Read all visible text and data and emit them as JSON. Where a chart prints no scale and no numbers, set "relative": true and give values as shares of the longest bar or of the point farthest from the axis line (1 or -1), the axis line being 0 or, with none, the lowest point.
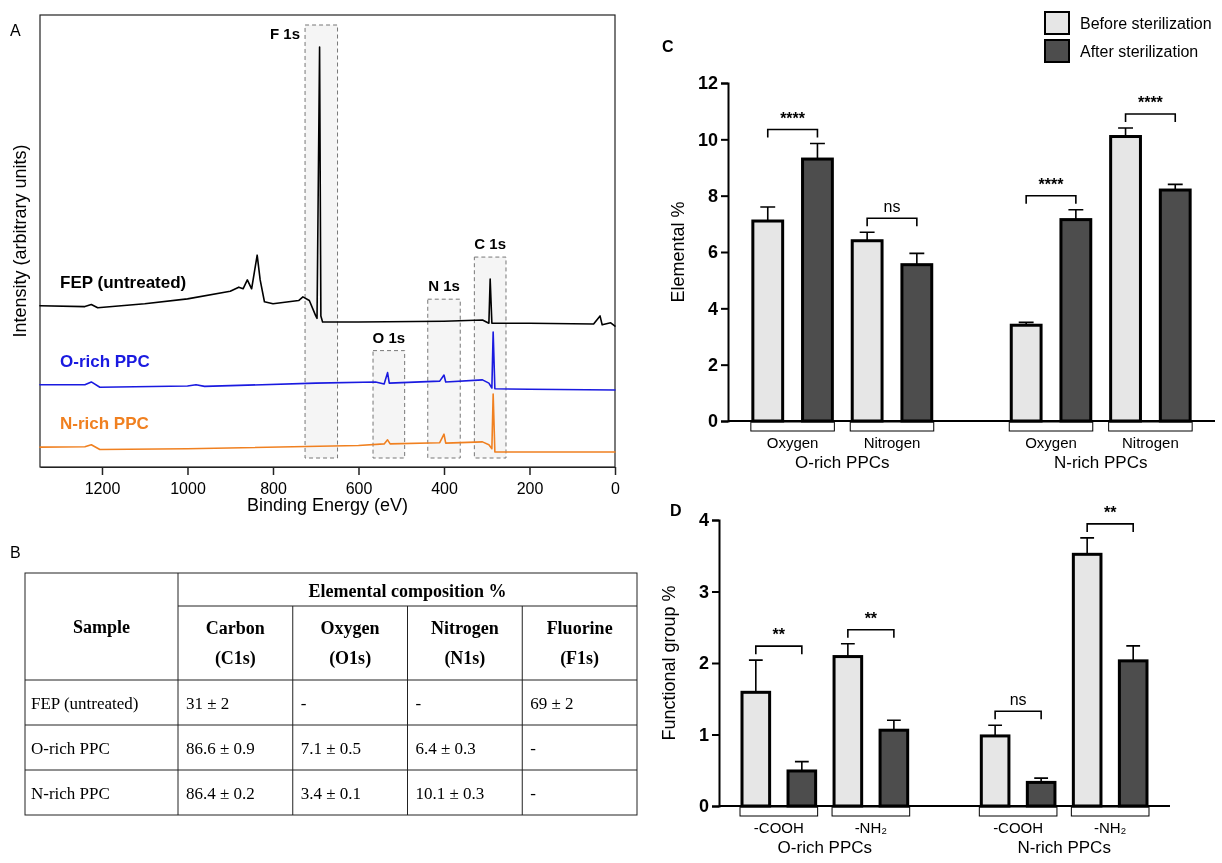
{
  "chart_data": [
    {
      "type": "line",
      "title": "A",
      "xlabel": "Binding Energy (eV)",
      "ylabel": "Intensity (arbitrary units)",
      "relative": true,
      "legend": false,
      "xlim": [
        1345,
        0
      ],
      "xticks": [
        1200,
        1000,
        800,
        600,
        400,
        200,
        0
      ],
      "bands": [
        {
          "axis": "x",
          "from": 725,
          "to": 649,
          "label": "F 1s"
        },
        {
          "axis": "x",
          "from": 566,
          "to": 492,
          "label": "O 1s"
        },
        {
          "axis": "x",
          "from": 438,
          "to": 362,
          "label": "N 1s"
        },
        {
          "axis": "x",
          "from": 329,
          "to": 255,
          "label": "C 1s"
        }
      ],
      "series": [
        {
          "name": "FEP (untreated)",
          "color": "#000000",
          "x": [
            1345,
            1240,
            1225,
            1210,
            1100,
            1000,
            900,
            880,
            870,
            860,
            850,
            837,
            830,
            820,
            800,
            740,
            730,
            715,
            700,
            697,
            691,
            688,
            684,
            600,
            400,
            310,
            295,
            292,
            288,
            200,
            50,
            35,
            30,
            10,
            0
          ],
          "values": [
            0.361,
            0.359,
            0.364,
            0.356,
            0.366,
            0.378,
            0.397,
            0.407,
            0.403,
            0.425,
            0.403,
            0.486,
            0.425,
            0.371,
            0.366,
            0.374,
            0.383,
            0.374,
            0.336,
            0.33,
            1.0,
            0.336,
            0.321,
            0.321,
            0.323,
            0.326,
            0.318,
            0.427,
            0.318,
            0.318,
            0.316,
            0.336,
            0.314,
            0.319,
            0.311
          ]
        },
        {
          "name": "O-rich PPC",
          "color": "#1a1ae0",
          "x": [
            1345,
            1240,
            1225,
            1205,
            1000,
            980,
            960,
            700,
            560,
            540,
            532,
            528,
            410,
            400,
            396,
            310,
            295,
            288,
            285,
            281,
            200,
            0
          ],
          "values": [
            0.166,
            0.166,
            0.173,
            0.16,
            0.163,
            0.166,
            0.162,
            0.17,
            0.173,
            0.168,
            0.196,
            0.17,
            0.175,
            0.19,
            0.173,
            0.178,
            0.17,
            0.158,
            0.296,
            0.156,
            0.155,
            0.153
          ]
        },
        {
          "name": "N-rich PPC",
          "color": "#f08020",
          "x": [
            1345,
            1240,
            1225,
            1205,
            1000,
            600,
            540,
            532,
            526,
            410,
            400,
            396,
            310,
            295,
            288,
            285,
            281,
            200,
            0
          ],
          "values": [
            0.012,
            0.013,
            0.018,
            0.006,
            0.008,
            0.016,
            0.02,
            0.03,
            0.02,
            0.023,
            0.044,
            0.022,
            0.025,
            0.018,
            0.008,
            0.143,
            0,
            0,
            0
          ]
        }
      ]
    },
    {
      "type": "other",
      "title": "B",
      "ylabel": "Sample",
      "xlabel": "Elemental composition %",
      "categories": [
        "Carbon (C1s)",
        "Oxygen (O1s)",
        "Nitrogen (N1s)",
        "Fluorine (F1s)"
      ],
      "y_categories": [
        "FEP (untreated)",
        "O-rich PPC",
        "N-rich PPC"
      ],
      "cell_labels": [
        [
          "31 ± 2",
          "-",
          "-",
          "69 ± 2"
        ],
        [
          "86.6 ± 0.9",
          "7.1 ± 0.5",
          "6.4 ± 0.3",
          "-"
        ],
        [
          "86.4 ± 0.2",
          "3.4 ± 0.1",
          "10.1 ± 0.3",
          "-"
        ]
      ]
    },
    {
      "type": "bar",
      "title": "C",
      "ylabel": "Elemental %",
      "categories": [
        "Oxygen",
        "Nitrogen",
        "Oxygen",
        "Nitrogen"
      ],
      "ylim": [
        0,
        12
      ],
      "yticks": [
        0,
        2,
        4,
        6,
        8,
        10,
        12
      ],
      "legend": "top right",
      "series": [
        {
          "name": "Before sterilization",
          "color": "#e6e6e6",
          "values": [
            7.1,
            6.4,
            3.4,
            10.1
          ],
          "errors": [
            0.5,
            0.3,
            0.1,
            0.3
          ]
        },
        {
          "name": "After sterilization",
          "color": "#4d4d4d",
          "values": [
            9.3,
            5.55,
            7.15,
            8.2
          ],
          "errors": [
            0.55,
            0.4,
            0.35,
            0.2
          ]
        }
      ],
      "annotations": [
        "****",
        "ns",
        "****",
        "****",
        "O-rich PPCs",
        "N-rich PPCs"
      ]
    },
    {
      "type": "bar",
      "title": "D",
      "ylabel": "Functional group %",
      "categories": [
        "-COOH",
        "-NH₂",
        "-COOH",
        "-NH₂"
      ],
      "ylim": [
        0,
        4
      ],
      "yticks": [
        0,
        1,
        2,
        3,
        4
      ],
      "legend": false,
      "series": [
        {
          "color": "#e6e6e6",
          "values": [
            1.59,
            2.09,
            0.98,
            3.52
          ],
          "errors": [
            0.45,
            0.18,
            0.15,
            0.23
          ]
        },
        {
          "color": "#4d4d4d",
          "values": [
            0.49,
            1.06,
            0.33,
            2.03
          ],
          "errors": [
            0.13,
            0.14,
            0.06,
            0.21
          ]
        }
      ],
      "annotations": [
        "**",
        "**",
        "ns",
        "**",
        "O-rich PPCs",
        "N-rich PPCs"
      ]
    }
  ]
}
